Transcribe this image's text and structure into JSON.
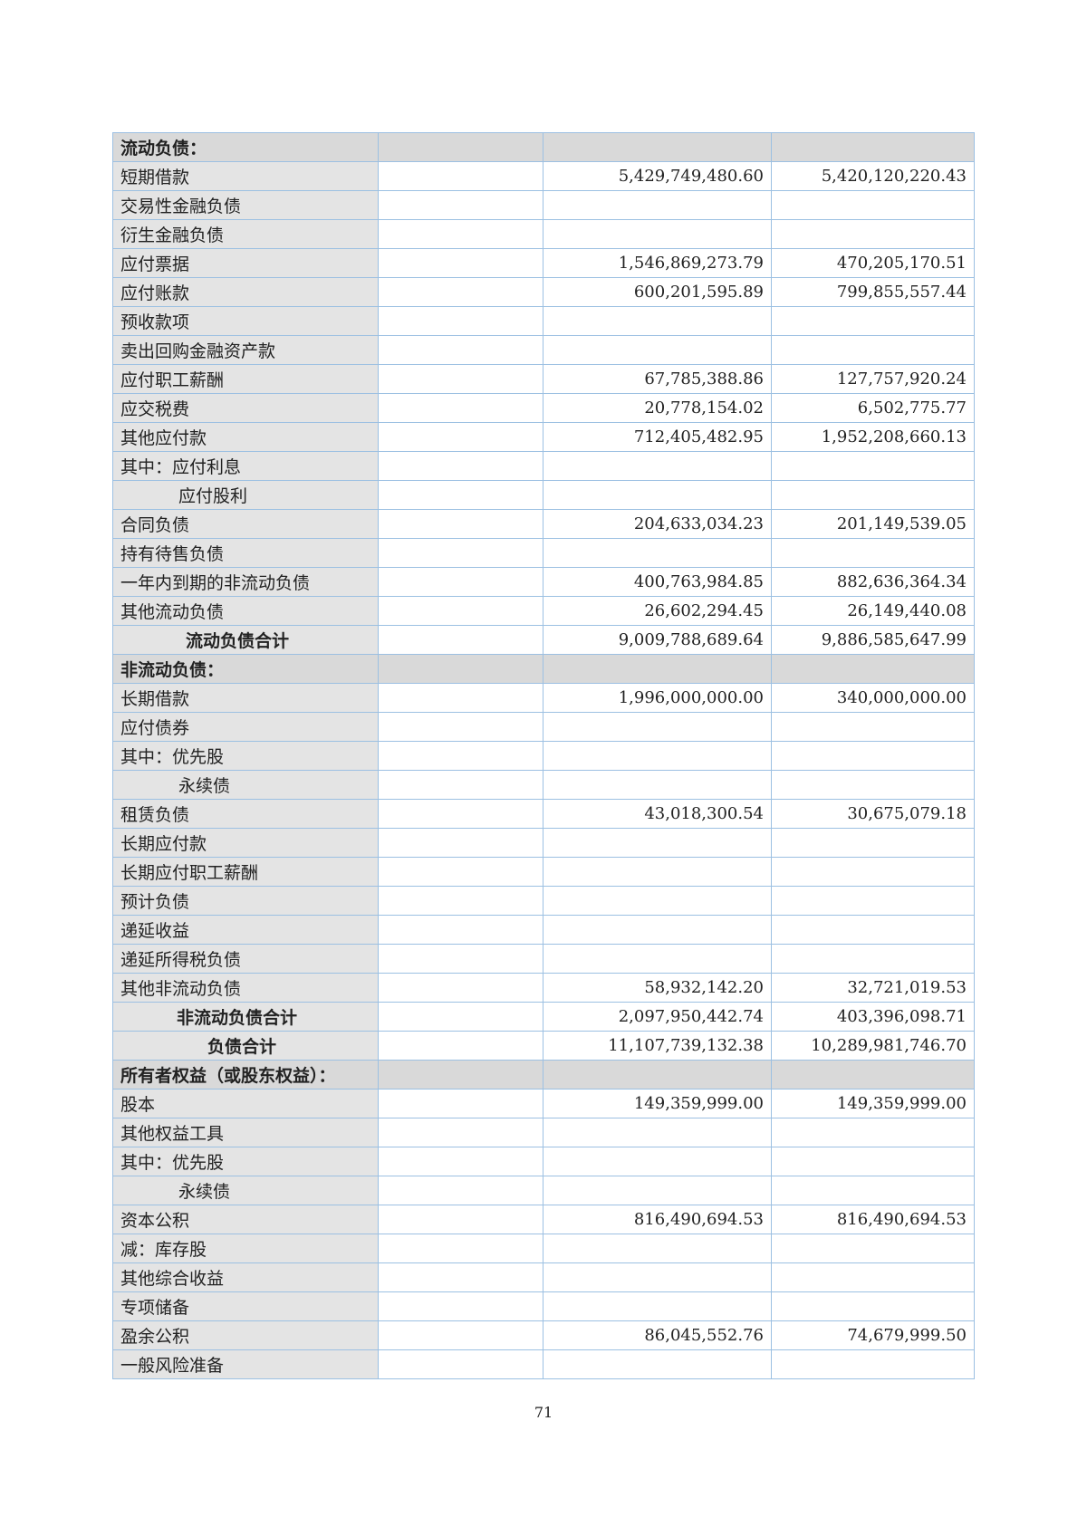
{
  "rows": [
    {
      "label": "流动负债：",
      "type": "section",
      "a": "",
      "b": ""
    },
    {
      "label": "短期借款",
      "a": "5,429,749,480.60",
      "b": "5,420,120,220.43"
    },
    {
      "label": "交易性金融负债",
      "a": "",
      "b": ""
    },
    {
      "label": "衍生金融负债",
      "a": "",
      "b": ""
    },
    {
      "label": "应付票据",
      "a": "1,546,869,273.79",
      "b": "470,205,170.51"
    },
    {
      "label": "应付账款",
      "a": "600,201,595.89",
      "b": "799,855,557.44"
    },
    {
      "label": "预收款项",
      "a": "",
      "b": ""
    },
    {
      "label": "卖出回购金融资产款",
      "a": "",
      "b": ""
    },
    {
      "label": "应付职工薪酬",
      "a": "67,785,388.86",
      "b": "127,757,920.24"
    },
    {
      "label": "应交税费",
      "a": "20,778,154.02",
      "b": "6,502,775.77"
    },
    {
      "label": "其他应付款",
      "a": "712,405,482.95",
      "b": "1,952,208,660.13"
    },
    {
      "label": "其中：应付利息",
      "a": "",
      "b": ""
    },
    {
      "label": "应付股利",
      "type": "ind1",
      "a": "",
      "b": ""
    },
    {
      "label": "合同负债",
      "a": "204,633,034.23",
      "b": "201,149,539.05"
    },
    {
      "label": "持有待售负债",
      "a": "",
      "b": ""
    },
    {
      "label": "一年内到期的非流动负债",
      "a": "400,763,984.85",
      "b": "882,636,364.34"
    },
    {
      "label": "其他流动负债",
      "a": "26,602,294.45",
      "b": "26,149,440.08"
    },
    {
      "label": "流动负债合计",
      "type": "total",
      "a": "9,009,788,689.64",
      "b": "9,886,585,647.99"
    },
    {
      "label": "非流动负债：",
      "type": "section",
      "a": "",
      "b": ""
    },
    {
      "label": "长期借款",
      "a": "1,996,000,000.00",
      "b": "340,000,000.00"
    },
    {
      "label": "应付债券",
      "a": "",
      "b": ""
    },
    {
      "label": "其中：优先股",
      "a": "",
      "b": ""
    },
    {
      "label": "永续债",
      "type": "ind1",
      "a": "",
      "b": ""
    },
    {
      "label": "租赁负债",
      "a": "43,018,300.54",
      "b": "30,675,079.18"
    },
    {
      "label": "长期应付款",
      "a": "",
      "b": ""
    },
    {
      "label": "长期应付职工薪酬",
      "a": "",
      "b": ""
    },
    {
      "label": "预计负债",
      "a": "",
      "b": ""
    },
    {
      "label": "递延收益",
      "a": "",
      "b": ""
    },
    {
      "label": "递延所得税负债",
      "a": "",
      "b": ""
    },
    {
      "label": "其他非流动负债",
      "a": "58,932,142.20",
      "b": "32,721,019.53"
    },
    {
      "label": "非流动负债合计",
      "type": "total2",
      "a": "2,097,950,442.74",
      "b": "403,396,098.71"
    },
    {
      "label": "负债合计",
      "type": "total3",
      "a": "11,107,739,132.38",
      "b": "10,289,981,746.70"
    },
    {
      "label": "所有者权益（或股东权益）：",
      "type": "section",
      "a": "",
      "b": ""
    },
    {
      "label": "股本",
      "a": "149,359,999.00",
      "b": "149,359,999.00"
    },
    {
      "label": "其他权益工具",
      "a": "",
      "b": ""
    },
    {
      "label": "其中：优先股",
      "a": "",
      "b": ""
    },
    {
      "label": "永续债",
      "type": "ind1",
      "a": "",
      "b": ""
    },
    {
      "label": "资本公积",
      "a": "816,490,694.53",
      "b": "816,490,694.53"
    },
    {
      "label": "减：库存股",
      "a": "",
      "b": ""
    },
    {
      "label": "其他综合收益",
      "a": "",
      "b": ""
    },
    {
      "label": "专项储备",
      "a": "",
      "b": ""
    },
    {
      "label": "盈余公积",
      "a": "86,045,552.76",
      "b": "74,679,999.50"
    },
    {
      "label": "一般风险准备",
      "a": "",
      "b": ""
    }
  ],
  "page_number": "71"
}
